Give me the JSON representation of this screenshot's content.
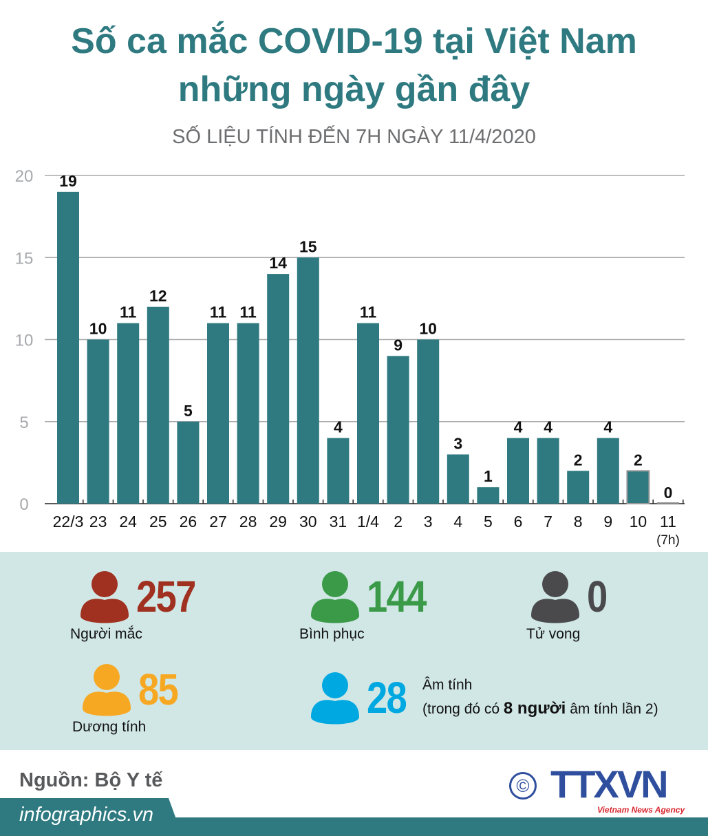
{
  "title_line1": "Số ca mắc COVID-19 tại Việt Nam",
  "title_line2": "những ngày gần đây",
  "subtitle": "SỐ LIỆU TÍNH ĐẾN 7H NGÀY 11/4/2020",
  "chart_data": {
    "type": "bar",
    "categories": [
      "22/3",
      "23",
      "24",
      "25",
      "26",
      "27",
      "28",
      "29",
      "30",
      "31",
      "1/4",
      "2",
      "3",
      "4",
      "5",
      "6",
      "7",
      "8",
      "9",
      "10",
      "11"
    ],
    "category_notes": {
      "11": "(7h)"
    },
    "values": [
      19,
      10,
      11,
      12,
      5,
      11,
      11,
      14,
      15,
      4,
      11,
      9,
      10,
      3,
      1,
      4,
      4,
      2,
      4,
      2,
      0
    ],
    "ylim": [
      0,
      20
    ],
    "yticks": [
      0,
      5,
      10,
      15,
      20
    ],
    "grid": true,
    "bar_color": "#2e7a80"
  },
  "stats": {
    "infected": {
      "value": "257",
      "label": "Người mắc",
      "color": "#a0301f"
    },
    "recovered": {
      "value": "144",
      "label": "Bình phục",
      "color": "#3a9a48"
    },
    "deaths": {
      "value": "0",
      "label": "Tử vong",
      "color": "#4a4a4c"
    },
    "positive": {
      "value": "85",
      "label": "Dương tính",
      "color": "#f7a823"
    },
    "negative": {
      "value": "28",
      "label": "Âm tính",
      "note_pre": "(trong đó có ",
      "note_bold": "8 người",
      "note_post": " âm tính lần 2)",
      "color": "#00a8e1"
    }
  },
  "footer": {
    "source": "Nguồn: Bộ Y tế",
    "site": "infographics.vn",
    "logo": "TTXVN",
    "logo_sub": "Vietnam News Agency",
    "copyright": "©"
  }
}
